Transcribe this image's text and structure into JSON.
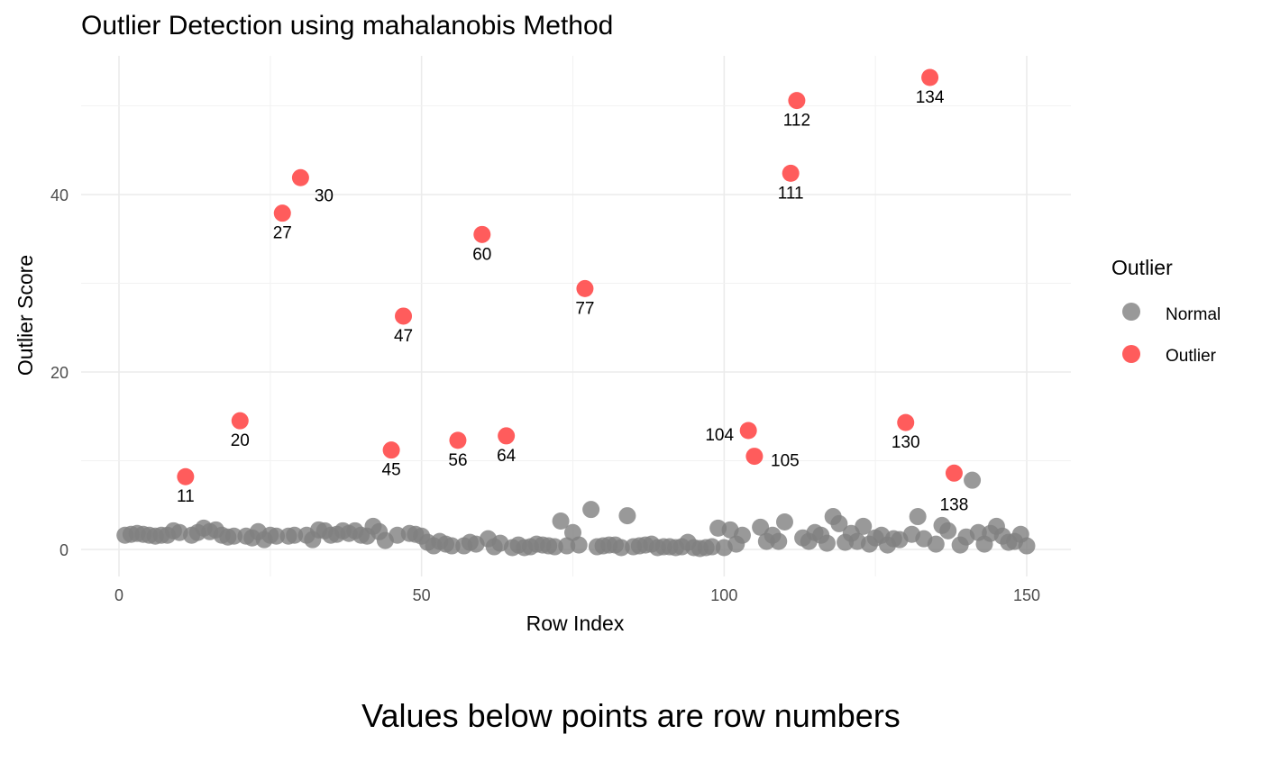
{
  "chart_data": {
    "type": "scatter",
    "title": "Outlier Detection using mahalanobis Method",
    "xlabel": "Row Index",
    "ylabel": "Outlier Score",
    "caption": "Values below points are row numbers",
    "xlim": [
      -6,
      157
    ],
    "ylim": [
      -3,
      55
    ],
    "x_ticks": [
      0,
      50,
      100,
      150
    ],
    "y_ticks": [
      0,
      20,
      40
    ],
    "grid": true,
    "legend": {
      "title": "Outlier",
      "placement": "right",
      "entries": [
        {
          "label": "Normal",
          "color": "#808080"
        },
        {
          "label": "Outlier",
          "color": "#ff3333"
        }
      ]
    },
    "series": [
      {
        "name": "Normal",
        "color": "#808080",
        "points": [
          [
            1,
            1.6
          ],
          [
            2,
            1.7
          ],
          [
            3,
            1.8
          ],
          [
            4,
            1.7
          ],
          [
            5,
            1.6
          ],
          [
            6,
            1.5
          ],
          [
            7,
            1.6
          ],
          [
            8,
            1.6
          ],
          [
            9,
            2.1
          ],
          [
            10,
            1.9
          ],
          [
            12,
            1.6
          ],
          [
            13,
            1.9
          ],
          [
            14,
            2.4
          ],
          [
            15,
            2.0
          ],
          [
            16,
            2.2
          ],
          [
            17,
            1.6
          ],
          [
            18,
            1.4
          ],
          [
            19,
            1.5
          ],
          [
            21,
            1.5
          ],
          [
            22,
            1.3
          ],
          [
            23,
            2.0
          ],
          [
            24,
            1.1
          ],
          [
            25,
            1.6
          ],
          [
            26,
            1.5
          ],
          [
            28,
            1.5
          ],
          [
            29,
            1.6
          ],
          [
            31,
            1.6
          ],
          [
            32,
            1.1
          ],
          [
            33,
            2.2
          ],
          [
            34,
            2.1
          ],
          [
            35,
            1.6
          ],
          [
            36,
            1.7
          ],
          [
            37,
            2.1
          ],
          [
            38,
            1.8
          ],
          [
            39,
            2.1
          ],
          [
            40,
            1.6
          ],
          [
            41,
            1.5
          ],
          [
            42,
            2.6
          ],
          [
            43,
            2.0
          ],
          [
            44,
            1.0
          ],
          [
            46,
            1.6
          ],
          [
            48,
            1.8
          ],
          [
            49,
            1.7
          ],
          [
            50,
            1.5
          ],
          [
            51,
            0.8
          ],
          [
            52,
            0.4
          ],
          [
            53,
            0.9
          ],
          [
            54,
            0.6
          ],
          [
            55,
            0.4
          ],
          [
            57,
            0.4
          ],
          [
            58,
            0.8
          ],
          [
            59,
            0.6
          ],
          [
            61,
            1.2
          ],
          [
            62,
            0.3
          ],
          [
            63,
            0.7
          ],
          [
            65,
            0.2
          ],
          [
            66,
            0.5
          ],
          [
            67,
            0.2
          ],
          [
            68,
            0.3
          ],
          [
            69,
            0.6
          ],
          [
            70,
            0.5
          ],
          [
            71,
            0.4
          ],
          [
            72,
            0.3
          ],
          [
            73,
            3.2
          ],
          [
            74,
            0.4
          ],
          [
            75,
            1.9
          ],
          [
            76,
            0.5
          ],
          [
            78,
            4.5
          ],
          [
            79,
            0.3
          ],
          [
            80,
            0.4
          ],
          [
            81,
            0.5
          ],
          [
            82,
            0.5
          ],
          [
            83,
            0.2
          ],
          [
            84,
            3.8
          ],
          [
            85,
            0.3
          ],
          [
            86,
            0.4
          ],
          [
            87,
            0.5
          ],
          [
            88,
            0.6
          ],
          [
            89,
            0.2
          ],
          [
            90,
            0.3
          ],
          [
            91,
            0.3
          ],
          [
            92,
            0.2
          ],
          [
            93,
            0.3
          ],
          [
            94,
            0.8
          ],
          [
            95,
            0.2
          ],
          [
            96,
            0.1
          ],
          [
            97,
            0.2
          ],
          [
            98,
            0.3
          ],
          [
            99,
            2.4
          ],
          [
            100,
            0.2
          ],
          [
            101,
            2.2
          ],
          [
            102,
            0.6
          ],
          [
            103,
            1.6
          ],
          [
            106,
            2.5
          ],
          [
            107,
            0.9
          ],
          [
            108,
            1.6
          ],
          [
            109,
            0.9
          ],
          [
            110,
            3.1
          ],
          [
            113,
            1.3
          ],
          [
            114,
            0.9
          ],
          [
            115,
            1.9
          ],
          [
            116,
            1.6
          ],
          [
            117,
            0.7
          ],
          [
            118,
            3.7
          ],
          [
            119,
            2.9
          ],
          [
            120,
            0.8
          ],
          [
            121,
            1.8
          ],
          [
            122,
            0.9
          ],
          [
            123,
            2.6
          ],
          [
            124,
            0.6
          ],
          [
            125,
            1.3
          ],
          [
            126,
            1.6
          ],
          [
            127,
            0.5
          ],
          [
            128,
            1.2
          ],
          [
            129,
            1.1
          ],
          [
            131,
            1.7
          ],
          [
            132,
            3.7
          ],
          [
            133,
            1.2
          ],
          [
            135,
            0.6
          ],
          [
            136,
            2.7
          ],
          [
            137,
            2.1
          ],
          [
            139,
            0.5
          ],
          [
            140,
            1.4
          ],
          [
            141,
            7.8
          ],
          [
            142,
            1.9
          ],
          [
            143,
            0.6
          ],
          [
            144,
            1.8
          ],
          [
            145,
            2.6
          ],
          [
            146,
            1.5
          ],
          [
            147,
            0.8
          ],
          [
            148,
            0.9
          ],
          [
            149,
            1.7
          ],
          [
            150,
            0.4
          ]
        ]
      },
      {
        "name": "Outlier",
        "color": "#ff3333",
        "points": [
          [
            11,
            8.2
          ],
          [
            20,
            14.5
          ],
          [
            27,
            37.9
          ],
          [
            30,
            41.9
          ],
          [
            45,
            11.2
          ],
          [
            47,
            26.3
          ],
          [
            56,
            12.3
          ],
          [
            60,
            35.5
          ],
          [
            64,
            12.8
          ],
          [
            77,
            29.4
          ],
          [
            104,
            13.4
          ],
          [
            105,
            10.5
          ],
          [
            111,
            42.4
          ],
          [
            112,
            50.6
          ],
          [
            130,
            14.3
          ],
          [
            134,
            53.2
          ],
          [
            138,
            8.6
          ]
        ]
      }
    ],
    "point_labels": [
      {
        "text": "11",
        "x": 11,
        "y": 8.2
      },
      {
        "text": "20",
        "x": 20,
        "y": 14.5
      },
      {
        "text": "27",
        "x": 27,
        "y": 37.9
      },
      {
        "text": "30",
        "x": 30,
        "y": 41.9
      },
      {
        "text": "45",
        "x": 45,
        "y": 11.2
      },
      {
        "text": "47",
        "x": 47,
        "y": 26.3
      },
      {
        "text": "56",
        "x": 56,
        "y": 12.3
      },
      {
        "text": "60",
        "x": 60,
        "y": 35.5
      },
      {
        "text": "64",
        "x": 64,
        "y": 12.8
      },
      {
        "text": "77",
        "x": 77,
        "y": 29.4
      },
      {
        "text": "104",
        "x": 104,
        "y": 13.4
      },
      {
        "text": "105",
        "x": 105,
        "y": 10.5
      },
      {
        "text": "111",
        "x": 111,
        "y": 42.4
      },
      {
        "text": "112",
        "x": 112,
        "y": 50.6
      },
      {
        "text": "130",
        "x": 130,
        "y": 14.3
      },
      {
        "text": "134",
        "x": 134,
        "y": 53.2
      },
      {
        "text": "138",
        "x": 138,
        "y": 8.6
      }
    ]
  }
}
